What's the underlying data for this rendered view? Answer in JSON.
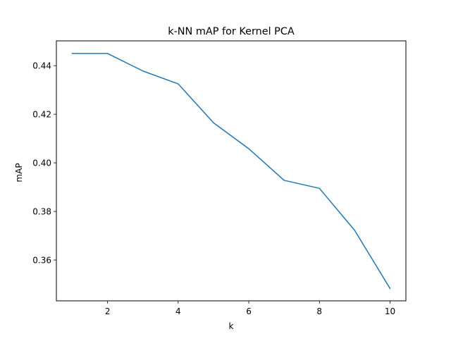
{
  "chart_data": {
    "type": "line",
    "title": "k-NN mAP for Kernel PCA",
    "xlabel": "k",
    "ylabel": "mAP",
    "xlim": [
      0.55,
      10.45
    ],
    "ylim": [
      0.3432,
      0.4502
    ],
    "xticks": [
      2,
      4,
      6,
      8,
      10
    ],
    "xtick_labels": [
      "2",
      "4",
      "6",
      "8",
      "10"
    ],
    "yticks": [
      0.36,
      0.38,
      0.4,
      0.42,
      0.44
    ],
    "ytick_labels": [
      "0.36",
      "0.38",
      "0.40",
      "0.42",
      "0.44"
    ],
    "grid": false,
    "legend": false,
    "series": [
      {
        "color": "#1f77b4",
        "x": [
          1,
          2,
          3,
          4,
          5,
          6,
          7,
          8,
          9,
          10
        ],
        "y": [
          0.445,
          0.445,
          0.4378,
          0.4325,
          0.4165,
          0.4058,
          0.3928,
          0.3895,
          0.3722,
          0.3483
        ]
      }
    ]
  }
}
